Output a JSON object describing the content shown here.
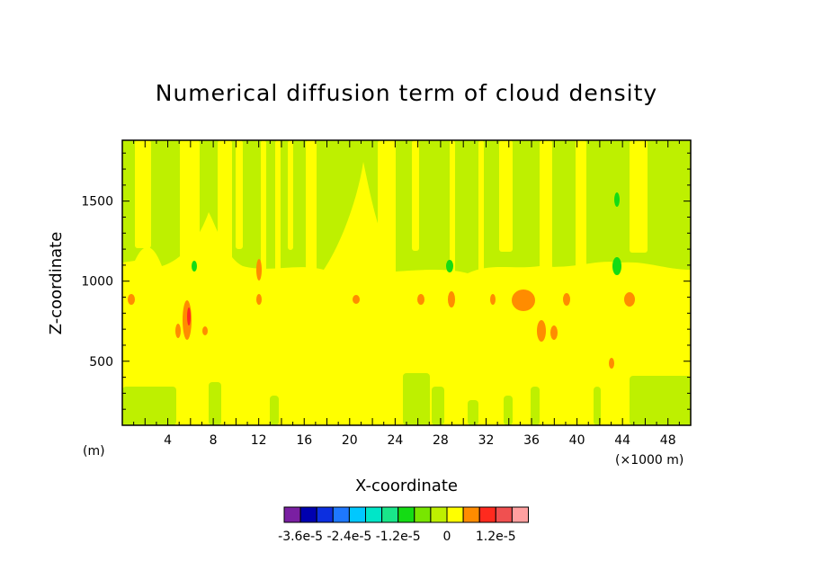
{
  "chart_data": {
    "type": "heatmap",
    "title": "Numerical diffusion term of cloud density",
    "xlabel": "X-coordinate",
    "ylabel": "Z-coordinate",
    "x_unit_left": "(m)",
    "x_unit_right": "(×1000 m)",
    "xlim": [
      0,
      50
    ],
    "ylim": [
      100,
      1880
    ],
    "x_ticks": [
      4,
      8,
      12,
      16,
      20,
      24,
      28,
      32,
      36,
      40,
      44,
      48
    ],
    "y_ticks": [
      500,
      1000,
      1500
    ],
    "colorbar": {
      "colors": [
        "#7a1fa2",
        "#0000b0",
        "#0c2fe0",
        "#1e78ff",
        "#00c8ff",
        "#00e6c8",
        "#19e68a",
        "#14dc14",
        "#78e600",
        "#bef000",
        "#ffff00",
        "#ff8c00",
        "#ff2a1e",
        "#f05050",
        "#ffa0a0"
      ],
      "labels": [
        "-3.6e-5",
        "-2.4e-5",
        "-1.2e-5",
        "0",
        "1.2e-5"
      ],
      "label_boundary_index": [
        1,
        4,
        7,
        10,
        13
      ]
    },
    "grid": false
  }
}
